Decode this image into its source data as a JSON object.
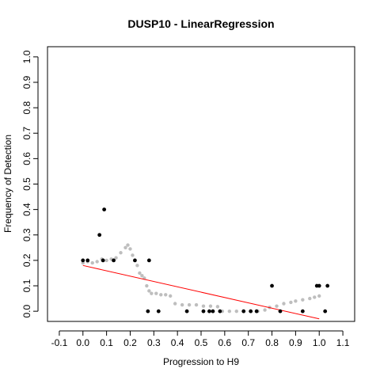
{
  "chart_data": {
    "type": "scatter",
    "title": "DUSP10 - LinearRegression",
    "xlabel": "Progression to H9",
    "ylabel": "Frequency of Detection",
    "xlim": [
      -0.15,
      1.15
    ],
    "ylim": [
      -0.04,
      1.04
    ],
    "x_ticks": [
      "-0.1",
      "0.0",
      "0.1",
      "0.2",
      "0.3",
      "0.4",
      "0.5",
      "0.6",
      "0.7",
      "0.8",
      "0.9",
      "1.0",
      "1.1"
    ],
    "y_ticks": [
      "0.0",
      "0.1",
      "0.2",
      "0.3",
      "0.4",
      "0.5",
      "0.6",
      "0.7",
      "0.8",
      "0.9",
      "1.0"
    ],
    "grid": false,
    "observed": {
      "color": "#000000",
      "points": [
        {
          "x": 0.0,
          "y": 0.2
        },
        {
          "x": 0.02,
          "y": 0.2
        },
        {
          "x": 0.07,
          "y": 0.3
        },
        {
          "x": 0.085,
          "y": 0.2
        },
        {
          "x": 0.09,
          "y": 0.4
        },
        {
          "x": 0.13,
          "y": 0.2
        },
        {
          "x": 0.22,
          "y": 0.2
        },
        {
          "x": 0.275,
          "y": 0.0
        },
        {
          "x": 0.28,
          "y": 0.2
        },
        {
          "x": 0.32,
          "y": 0.0
        },
        {
          "x": 0.44,
          "y": 0.0
        },
        {
          "x": 0.51,
          "y": 0.0
        },
        {
          "x": 0.535,
          "y": 0.0
        },
        {
          "x": 0.55,
          "y": 0.0
        },
        {
          "x": 0.58,
          "y": 0.0
        },
        {
          "x": 0.68,
          "y": 0.0
        },
        {
          "x": 0.71,
          "y": 0.0
        },
        {
          "x": 0.735,
          "y": 0.0
        },
        {
          "x": 0.8,
          "y": 0.1
        },
        {
          "x": 0.835,
          "y": 0.0
        },
        {
          "x": 0.93,
          "y": 0.0
        },
        {
          "x": 0.99,
          "y": 0.1
        },
        {
          "x": 1.0,
          "y": 0.1
        },
        {
          "x": 1.025,
          "y": 0.0
        },
        {
          "x": 1.035,
          "y": 0.1
        }
      ]
    },
    "smoothed": {
      "color": "#bebebe",
      "points": [
        {
          "x": 0.0,
          "y": 0.19
        },
        {
          "x": 0.02,
          "y": 0.195
        },
        {
          "x": 0.04,
          "y": 0.19
        },
        {
          "x": 0.06,
          "y": 0.195
        },
        {
          "x": 0.08,
          "y": 0.205
        },
        {
          "x": 0.1,
          "y": 0.2
        },
        {
          "x": 0.12,
          "y": 0.205
        },
        {
          "x": 0.14,
          "y": 0.21
        },
        {
          "x": 0.16,
          "y": 0.23
        },
        {
          "x": 0.18,
          "y": 0.25
        },
        {
          "x": 0.19,
          "y": 0.26
        },
        {
          "x": 0.2,
          "y": 0.245
        },
        {
          "x": 0.21,
          "y": 0.22
        },
        {
          "x": 0.22,
          "y": 0.2
        },
        {
          "x": 0.23,
          "y": 0.18
        },
        {
          "x": 0.24,
          "y": 0.15
        },
        {
          "x": 0.25,
          "y": 0.14
        },
        {
          "x": 0.26,
          "y": 0.13
        },
        {
          "x": 0.27,
          "y": 0.1
        },
        {
          "x": 0.28,
          "y": 0.08
        },
        {
          "x": 0.29,
          "y": 0.07
        },
        {
          "x": 0.31,
          "y": 0.07
        },
        {
          "x": 0.33,
          "y": 0.065
        },
        {
          "x": 0.35,
          "y": 0.065
        },
        {
          "x": 0.37,
          "y": 0.06
        },
        {
          "x": 0.39,
          "y": 0.03
        },
        {
          "x": 0.42,
          "y": 0.025
        },
        {
          "x": 0.45,
          "y": 0.025
        },
        {
          "x": 0.48,
          "y": 0.025
        },
        {
          "x": 0.51,
          "y": 0.02
        },
        {
          "x": 0.54,
          "y": 0.02
        },
        {
          "x": 0.57,
          "y": 0.018
        },
        {
          "x": 0.59,
          "y": 0.0
        },
        {
          "x": 0.62,
          "y": 0.0
        },
        {
          "x": 0.65,
          "y": 0.0
        },
        {
          "x": 0.68,
          "y": 0.0
        },
        {
          "x": 0.71,
          "y": 0.0
        },
        {
          "x": 0.74,
          "y": 0.0
        },
        {
          "x": 0.77,
          "y": 0.005
        },
        {
          "x": 0.79,
          "y": 0.015
        },
        {
          "x": 0.82,
          "y": 0.02
        },
        {
          "x": 0.85,
          "y": 0.03
        },
        {
          "x": 0.88,
          "y": 0.035
        },
        {
          "x": 0.9,
          "y": 0.04
        },
        {
          "x": 0.93,
          "y": 0.045
        },
        {
          "x": 0.96,
          "y": 0.05
        },
        {
          "x": 0.98,
          "y": 0.055
        },
        {
          "x": 1.0,
          "y": 0.06
        }
      ]
    },
    "regression_line": {
      "color": "#ff0000",
      "x": [
        0.0,
        1.0
      ],
      "y": [
        0.18,
        -0.03
      ]
    }
  }
}
